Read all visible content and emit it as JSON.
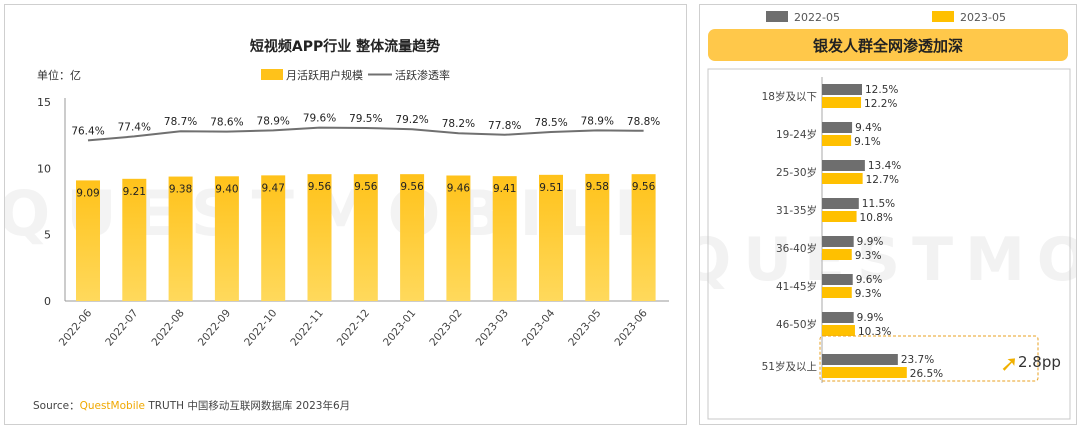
{
  "left": {
    "title": "短视频APP行业 整体流量趋势",
    "unit_label": "单位：亿",
    "source_prefix": "Source：",
    "source_brand": "QuestMobile",
    "source_rest": " TRUTH 中国移动互联网数据库 2023年6月",
    "watermark": "QUESTMOBILE"
  },
  "right": {
    "title": "银发人群全网渗透加深",
    "watermark": "QUESTMO",
    "highlight_label": "2.8pp"
  },
  "colors": {
    "bar_top": "#FFC21A",
    "bar_bottom": "#FFD95C",
    "line": "#707070",
    "gray_bar": "#6E6E6E",
    "gold_bar": "#FFC000",
    "banner": "#FFC84A",
    "highlight": "#E8A020"
  },
  "chart_data": [
    {
      "type": "bar",
      "title": "短视频APP行业 整体流量趋势",
      "ylabel": "单位：亿",
      "categories": [
        "2022-06",
        "2022-07",
        "2022-08",
        "2022-09",
        "2022-10",
        "2022-11",
        "2022-12",
        "2023-01",
        "2023-02",
        "2023-03",
        "2023-04",
        "2023-05",
        "2023-06"
      ],
      "ylim": [
        0,
        15
      ],
      "yticks": [
        0,
        5,
        10,
        15
      ],
      "series": [
        {
          "name": "月活跃用户规模",
          "type": "bar",
          "values": [
            9.09,
            9.21,
            9.38,
            9.4,
            9.47,
            9.56,
            9.56,
            9.56,
            9.46,
            9.41,
            9.51,
            9.58,
            9.56
          ],
          "labels": [
            "9.09",
            "9.21",
            "9.38",
            "9.40",
            "9.47",
            "9.56",
            "9.56",
            "9.56",
            "9.46",
            "9.41",
            "9.51",
            "9.58",
            "9.56"
          ]
        },
        {
          "name": "活跃渗透率",
          "type": "line",
          "values": [
            76.4,
            77.4,
            78.7,
            78.6,
            78.9,
            79.6,
            79.5,
            79.2,
            78.2,
            77.8,
            78.5,
            78.9,
            78.8
          ],
          "labels": [
            "76.4%",
            "77.4%",
            "78.7%",
            "78.6%",
            "78.9%",
            "79.6%",
            "79.5%",
            "79.2%",
            "78.2%",
            "77.8%",
            "78.5%",
            "78.9%",
            "78.8%"
          ]
        }
      ],
      "legend": "top"
    },
    {
      "type": "bar",
      "orientation": "horizontal",
      "title": "银发人群全网渗透加深",
      "categories": [
        "18岁及以下",
        "19-24岁",
        "25-30岁",
        "31-35岁",
        "36-40岁",
        "41-45岁",
        "46-50岁",
        "51岁及以上"
      ],
      "series": [
        {
          "name": "2022-05",
          "values": [
            12.5,
            9.4,
            13.4,
            11.5,
            9.9,
            9.6,
            9.9,
            23.7
          ],
          "labels": [
            "12.5%",
            "9.4%",
            "13.4%",
            "11.5%",
            "9.9%",
            "9.6%",
            "9.9%",
            "23.7%"
          ]
        },
        {
          "name": "2023-05",
          "values": [
            12.2,
            9.1,
            12.7,
            10.8,
            9.3,
            9.3,
            10.3,
            26.5
          ],
          "labels": [
            "12.2%",
            "9.1%",
            "12.7%",
            "10.8%",
            "9.3%",
            "9.3%",
            "10.3%",
            "26.5%"
          ]
        }
      ],
      "legend": "top"
    }
  ]
}
